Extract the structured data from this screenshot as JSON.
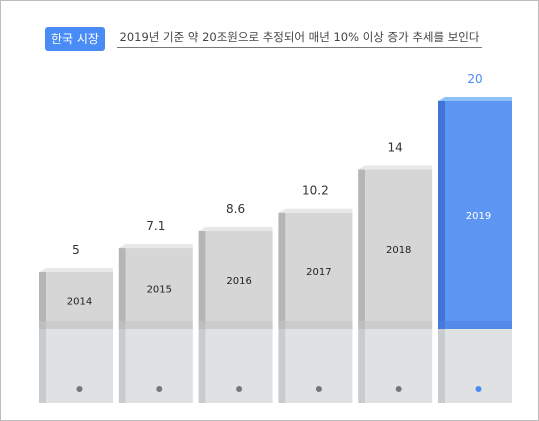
{
  "header": {
    "badge": "한국 시장",
    "subtitle": "2019년 기준 약 20조원으로 추정되어 매년 10% 이상 증가 추세를 보인다"
  },
  "chart_data": {
    "type": "bar",
    "categories": [
      "2014",
      "2015",
      "2016",
      "2017",
      "2018",
      "2019"
    ],
    "values": [
      5,
      7.1,
      8.6,
      10.2,
      14,
      20
    ],
    "value_labels": [
      "5",
      "7.1",
      "8.6",
      "10.2",
      "14",
      "20"
    ],
    "highlight_index": 5,
    "ylim": [
      0,
      20
    ],
    "grid": false,
    "legend": "none"
  },
  "colors": {
    "bar_front": "#d6d6d6",
    "bar_side": "#b5b5b5",
    "bar_top": "#e8e8e8",
    "base_front": "#dfe1e3",
    "base_side": "#c9cccf",
    "highlight_front": "#5d95f2",
    "highlight_side": "#4274d6",
    "highlight_top": "#8cc2f7",
    "highlight_label": "#4a8cf5",
    "dot": "#777777",
    "highlight_dot": "#4a8cf5"
  }
}
